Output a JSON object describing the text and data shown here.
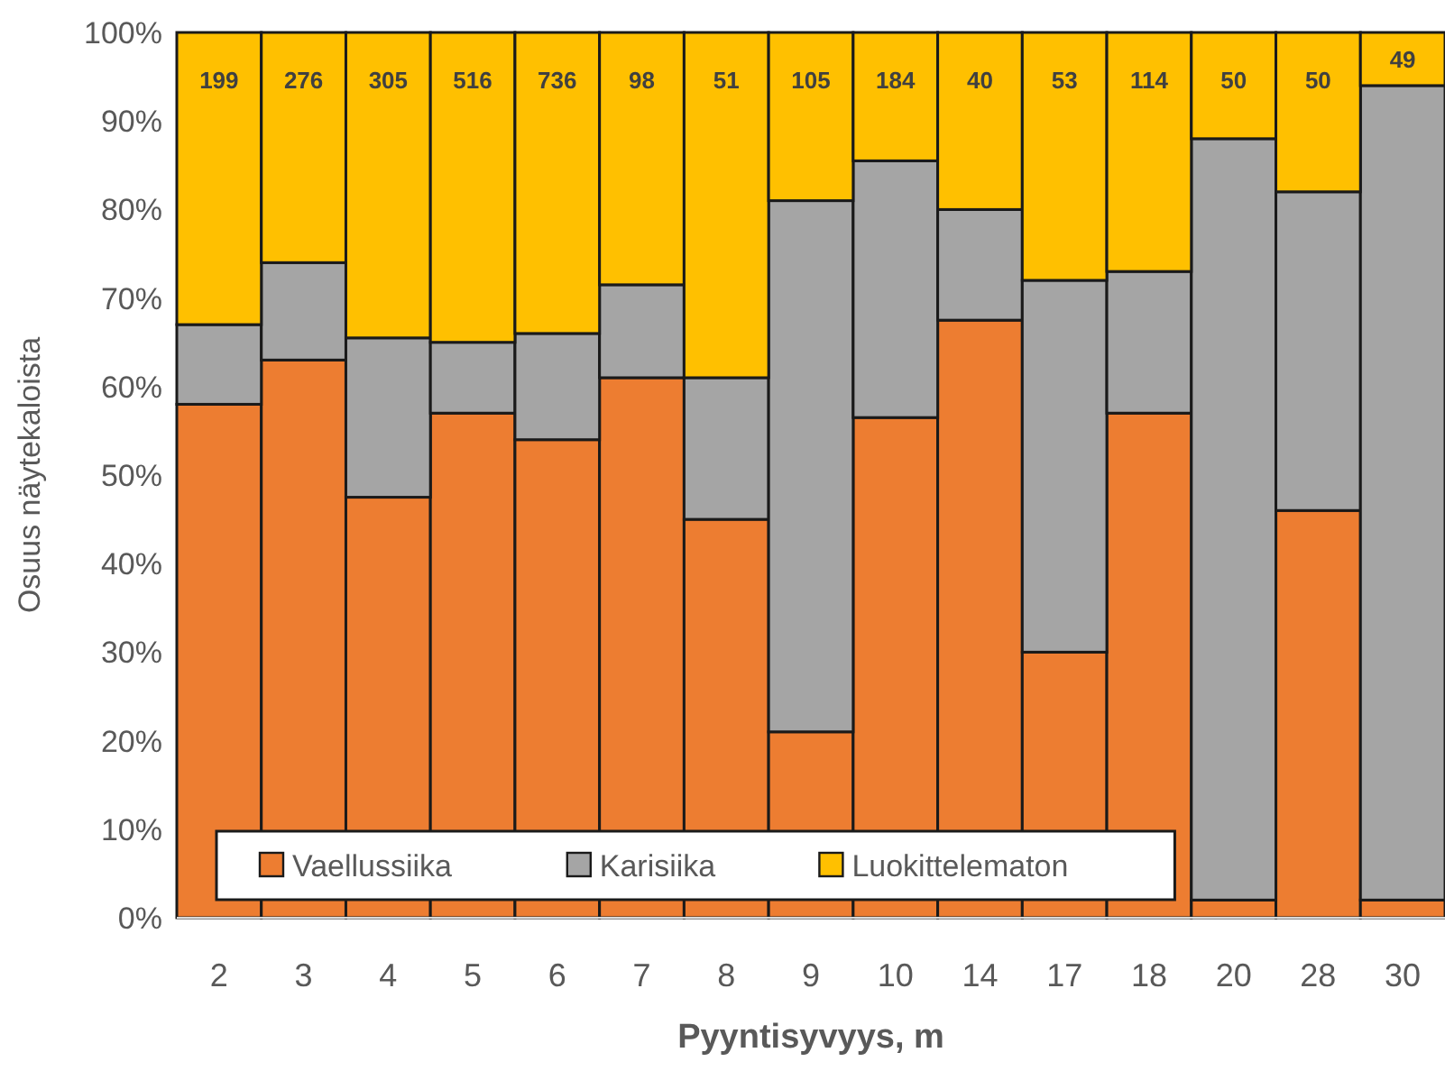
{
  "chart_data": {
    "type": "bar",
    "stacked": true,
    "xlabel": "Pyyntisyvyys, m",
    "ylabel": "Osuus näytekaloista",
    "categories": [
      "2",
      "3",
      "4",
      "5",
      "6",
      "7",
      "8",
      "9",
      "10",
      "14",
      "17",
      "18",
      "20",
      "28",
      "30"
    ],
    "series": [
      {
        "name": "Vaellussiika",
        "color": "#ed7d31",
        "values": [
          58,
          63,
          47.5,
          57,
          54,
          61,
          45,
          21,
          56.5,
          67.5,
          30,
          57,
          2,
          46,
          2
        ]
      },
      {
        "name": "Karisiika",
        "color": "#a5a5a5",
        "values": [
          9,
          11,
          18,
          8,
          12,
          10.5,
          16,
          60,
          29,
          12.5,
          42,
          16,
          86,
          36,
          92
        ]
      },
      {
        "name": "Luokittelematon",
        "color": "#ffc000",
        "values": [
          33,
          26,
          34.5,
          35,
          34,
          28.5,
          39,
          19,
          14.5,
          20,
          28,
          27,
          12,
          18,
          6
        ]
      }
    ],
    "annotations": [
      "199",
      "276",
      "305",
      "516",
      "736",
      "98",
      "51",
      "105",
      "184",
      "40",
      "53",
      "114",
      "50",
      "50",
      "49"
    ],
    "ylim": [
      0,
      100
    ],
    "yticks": [
      {
        "value": 0,
        "label": "0%"
      },
      {
        "value": 10,
        "label": "10%"
      },
      {
        "value": 20,
        "label": "20%"
      },
      {
        "value": 30,
        "label": "30%"
      },
      {
        "value": 40,
        "label": "40%"
      },
      {
        "value": 50,
        "label": "50%"
      },
      {
        "value": 60,
        "label": "60%"
      },
      {
        "value": 70,
        "label": "70%"
      },
      {
        "value": 80,
        "label": "80%"
      },
      {
        "value": 90,
        "label": "90%"
      },
      {
        "value": 100,
        "label": "100%"
      }
    ],
    "legend": "bottom left"
  }
}
